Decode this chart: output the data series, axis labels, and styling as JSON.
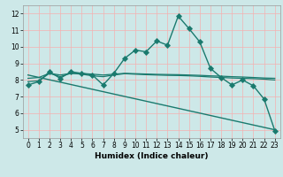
{
  "title": "",
  "xlabel": "Humidex (Indice chaleur)",
  "ylabel": "",
  "xlim": [
    -0.5,
    23.5
  ],
  "ylim": [
    4.5,
    12.5
  ],
  "yticks": [
    5,
    6,
    7,
    8,
    9,
    10,
    11,
    12
  ],
  "xticks": [
    0,
    1,
    2,
    3,
    4,
    5,
    6,
    7,
    8,
    9,
    10,
    11,
    12,
    13,
    14,
    15,
    16,
    17,
    18,
    19,
    20,
    21,
    22,
    23
  ],
  "bg_color": "#cde8e8",
  "line_color": "#1a7a6e",
  "grid_color": "#f4b0b0",
  "series": [
    {
      "x": [
        0,
        1,
        2,
        3,
        4,
        5,
        6,
        7,
        8,
        9,
        10,
        11,
        12,
        13,
        14,
        15,
        16,
        17,
        18,
        19,
        20,
        21,
        22,
        23
      ],
      "y": [
        7.7,
        7.9,
        8.5,
        8.1,
        8.5,
        8.4,
        8.3,
        7.7,
        8.4,
        9.3,
        9.8,
        9.7,
        10.35,
        10.1,
        11.85,
        11.1,
        10.3,
        8.7,
        8.15,
        7.7,
        8.0,
        7.65,
        6.85,
        4.95
      ],
      "marker": "D",
      "marker_size": 2.5,
      "linewidth": 1.0
    },
    {
      "x": [
        0,
        23
      ],
      "y": [
        8.3,
        5.0
      ],
      "marker": null,
      "marker_size": 0,
      "linewidth": 1.0
    },
    {
      "x": [
        0,
        1,
        2,
        3,
        4,
        5,
        6,
        7,
        8,
        9,
        10,
        11,
        12,
        13,
        14,
        15,
        16,
        17,
        18,
        19,
        20,
        21,
        22,
        23
      ],
      "y": [
        8.1,
        8.15,
        8.4,
        8.3,
        8.4,
        8.4,
        8.35,
        8.3,
        8.35,
        8.4,
        8.38,
        8.36,
        8.34,
        8.33,
        8.32,
        8.3,
        8.28,
        8.25,
        8.23,
        8.2,
        8.18,
        8.15,
        8.12,
        8.1
      ],
      "marker": null,
      "marker_size": 0,
      "linewidth": 0.9
    },
    {
      "x": [
        0,
        1,
        2,
        3,
        4,
        5,
        6,
        7,
        8,
        9,
        10,
        11,
        12,
        13,
        14,
        15,
        16,
        17,
        18,
        19,
        20,
        21,
        22,
        23
      ],
      "y": [
        7.9,
        7.95,
        8.4,
        8.2,
        8.4,
        8.35,
        8.25,
        8.2,
        8.3,
        8.38,
        8.35,
        8.32,
        8.3,
        8.28,
        8.27,
        8.25,
        8.22,
        8.18,
        8.15,
        8.12,
        8.1,
        8.08,
        8.05,
        8.0
      ],
      "marker": null,
      "marker_size": 0,
      "linewidth": 0.9
    },
    {
      "x": [
        0,
        1,
        2,
        3,
        4,
        5,
        6,
        7,
        8,
        9,
        10,
        11,
        12,
        13,
        14,
        15,
        16,
        17,
        18,
        19,
        20,
        21,
        22,
        23
      ],
      "y": [
        7.7,
        7.9,
        8.5,
        8.1,
        8.5,
        8.4,
        8.3,
        7.7,
        8.4,
        9.3,
        9.8,
        9.7,
        10.35,
        10.1,
        11.85,
        11.1,
        10.3,
        8.7,
        8.15,
        7.7,
        8.0,
        7.65,
        6.85,
        4.95
      ],
      "marker": "+",
      "marker_size": 4,
      "linewidth": 0
    }
  ]
}
